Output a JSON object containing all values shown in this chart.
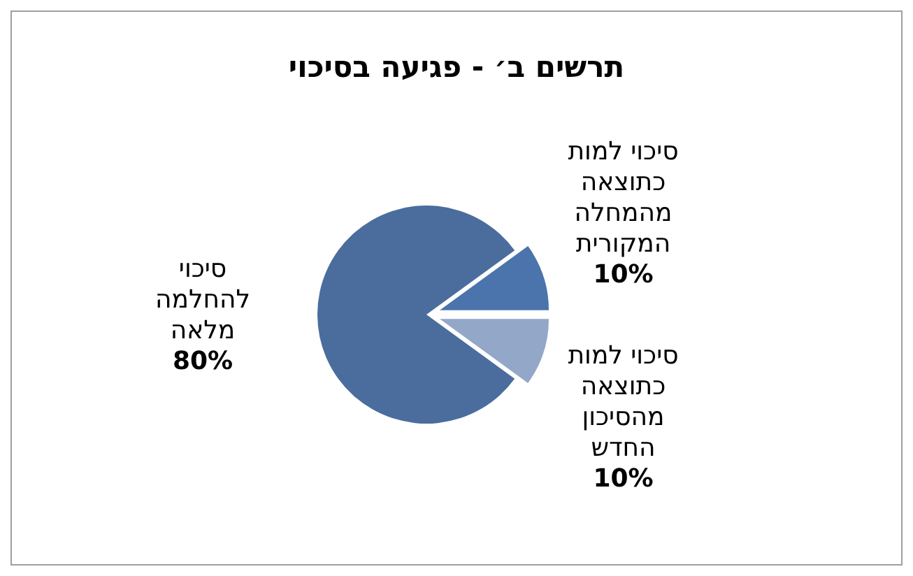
{
  "chart_data": {
    "type": "pie",
    "title": "תרשים ב׳ - פגיעה בסיכוי",
    "categories": [
      "סיכוי להחלמה מלאה",
      "סיכוי למות כתוצאה מהמחלה המקורית",
      "סיכוי למות כתוצאה מהסיכון החדש"
    ],
    "values": [
      80,
      10,
      10
    ],
    "value_labels": [
      "80%",
      "10%",
      "10%"
    ],
    "colors": [
      "#4a6d9e",
      "#4a74ab",
      "#93a7c8"
    ]
  }
}
